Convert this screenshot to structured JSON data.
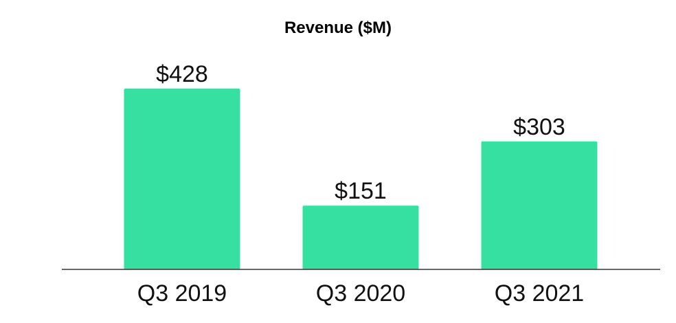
{
  "chart_data": {
    "type": "bar",
    "title": "Revenue ($M)",
    "categories": [
      "Q3 2019",
      "Q3 2020",
      "Q3 2021"
    ],
    "values": [
      428,
      151,
      303
    ],
    "data_labels": [
      "$428",
      "$151",
      "$303"
    ],
    "xlabel": "",
    "ylabel": "",
    "ylim": [
      0,
      428
    ],
    "grid": false,
    "legend": "none",
    "colors": {
      "bar": "#36e0a1",
      "axis": "#333333"
    }
  }
}
